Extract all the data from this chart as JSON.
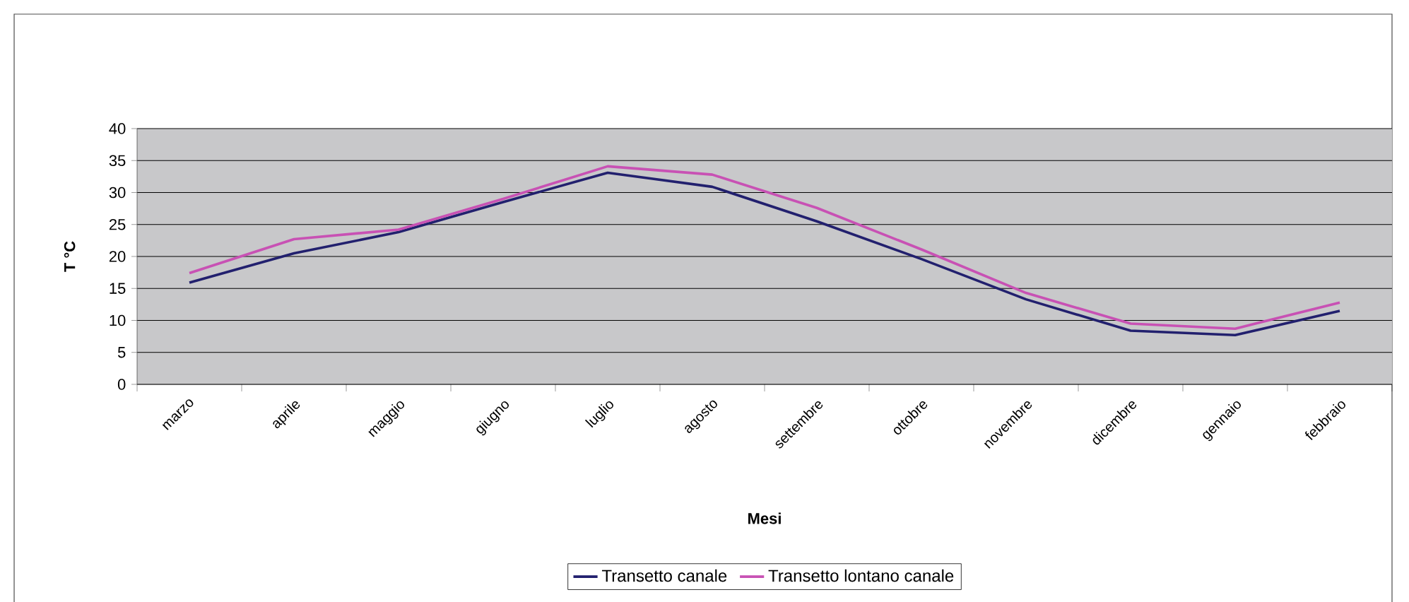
{
  "chart_data": {
    "type": "line",
    "xlabel": "Mesi",
    "ylabel": "T °C",
    "categories": [
      "marzo",
      "aprile",
      "maggio",
      "giugno",
      "luglio",
      "agosto",
      "settembre",
      "ottobre",
      "novembre",
      "dicembre",
      "gennaio",
      "febbraio"
    ],
    "series": [
      {
        "name": "Transetto canale",
        "color": "#22206e",
        "values": [
          15.9,
          20.5,
          23.8,
          28.5,
          33.1,
          30.9,
          25.5,
          19.6,
          13.3,
          8.4,
          7.7,
          11.5
        ]
      },
      {
        "name": "Transetto lontano canale",
        "color": "#c851b4",
        "values": [
          17.4,
          22.7,
          24.2,
          29.0,
          34.1,
          32.8,
          27.6,
          21.1,
          14.3,
          9.5,
          8.7,
          12.8
        ]
      }
    ],
    "ylim": [
      0,
      40
    ],
    "yticks": [
      0,
      5,
      10,
      15,
      20,
      25,
      30,
      35,
      40
    ],
    "grid": "y",
    "legend": "bottom",
    "marker": "none",
    "line_style": "solid"
  }
}
